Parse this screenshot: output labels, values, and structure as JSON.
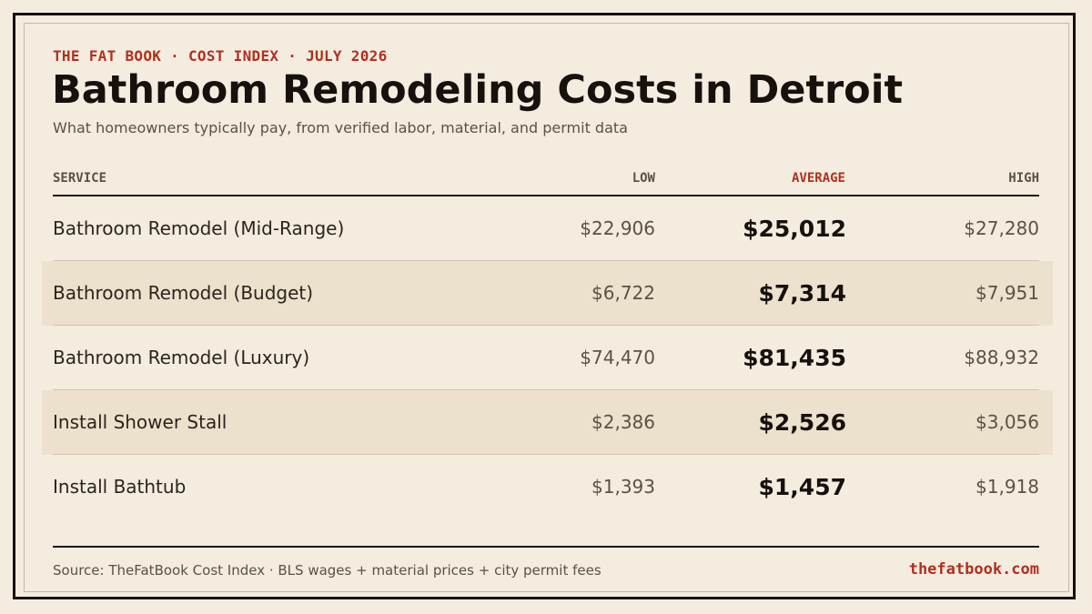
{
  "header": {
    "kicker": "THE FAT BOOK · COST INDEX · JULY 2026",
    "title": "Bathroom Remodeling Costs in Detroit",
    "subtitle": "What homeowners typically pay, from verified labor, material, and permit data"
  },
  "table": {
    "columns": {
      "service": "SERVICE",
      "low": "LOW",
      "average": "AVERAGE",
      "high": "HIGH"
    },
    "rows": [
      {
        "service": "Bathroom Remodel (Mid-Range)",
        "low": "$22,906",
        "average": "$25,012",
        "high": "$27,280"
      },
      {
        "service": "Bathroom Remodel (Budget)",
        "low": "$6,722",
        "average": "$7,314",
        "high": "$7,951"
      },
      {
        "service": "Bathroom Remodel (Luxury)",
        "low": "$74,470",
        "average": "$81,435",
        "high": "$88,932"
      },
      {
        "service": "Install Shower Stall",
        "low": "$2,386",
        "average": "$2,526",
        "high": "$3,056"
      },
      {
        "service": "Install Bathtub",
        "low": "$1,393",
        "average": "$1,457",
        "high": "$1,918"
      }
    ]
  },
  "footer": {
    "source": "Source: TheFatBook Cost Index · BLS wages + material prices + city permit fees",
    "site": "thefatbook.com"
  },
  "colors": {
    "background": "#f4ecdf",
    "ink": "#16110d",
    "accent": "#b0301f",
    "muted": "#5b5145",
    "row_shade": "#ece1cd"
  }
}
